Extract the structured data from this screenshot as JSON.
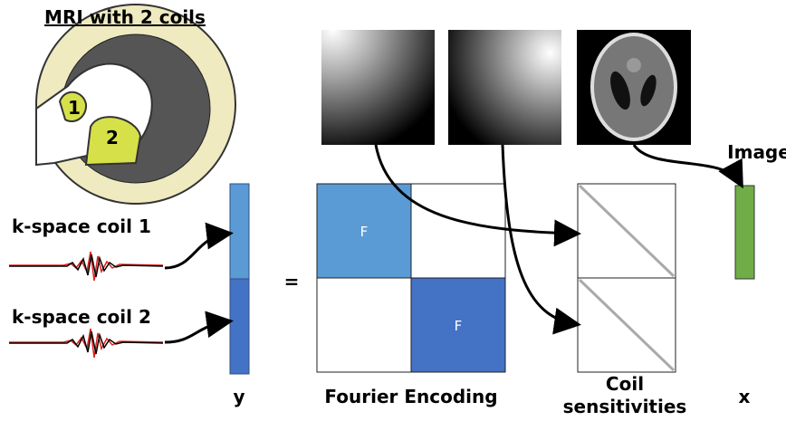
{
  "header": {
    "title": "MRI with 2 coils"
  },
  "scanner": {
    "coil_labels": [
      "1",
      "2"
    ]
  },
  "kspace": {
    "labels": [
      "k-space coil 1",
      "k-space coil 2"
    ]
  },
  "vectors": {
    "y": "y",
    "x": "x"
  },
  "equals": "=",
  "matrix": {
    "blocks": [
      "F",
      "F"
    ],
    "label": "Fourier Encoding"
  },
  "coils": {
    "label_lines": [
      "Coil",
      "sensitivities"
    ]
  },
  "image": {
    "label": "Image"
  }
}
